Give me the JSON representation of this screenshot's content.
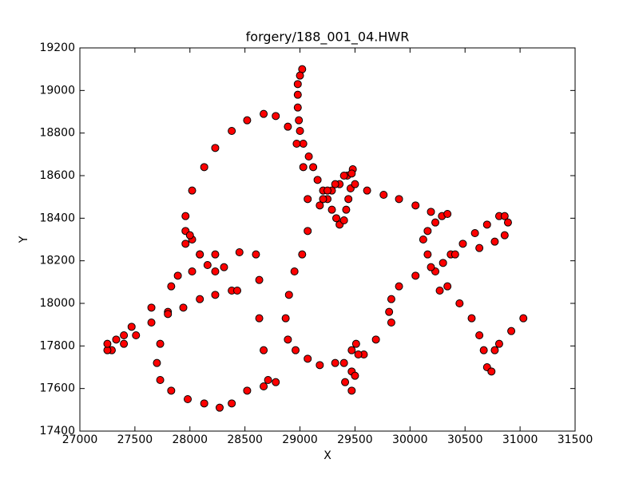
{
  "chart_data": {
    "type": "scatter",
    "title": "forgery/188_001_04.HWR",
    "xlabel": "X",
    "ylabel": "Y",
    "color": "#ff0000",
    "edgecolor": "#000000",
    "xlim": [
      27000,
      31500
    ],
    "xticks": [
      27000,
      27500,
      28000,
      28500,
      29000,
      29500,
      30000,
      30500,
      31000,
      31500
    ],
    "ylim": [
      17400,
      19200
    ],
    "yticks": [
      17400,
      17600,
      17800,
      18000,
      18200,
      18400,
      18600,
      18800,
      19000,
      19200
    ],
    "x": [
      29020,
      29000,
      28980,
      28980,
      28980,
      28990,
      29000,
      29030,
      29080,
      29120,
      29160,
      29210,
      29250,
      29290,
      29330,
      29360,
      29400,
      29420,
      29440,
      29460,
      29480,
      29430,
      29360,
      29290,
      29210,
      29180,
      29250,
      29320,
      29400,
      29470,
      29500,
      29610,
      29760,
      29900,
      30050,
      30190,
      30290,
      30340,
      30230,
      30160,
      30120,
      30160,
      30230,
      30270,
      30300,
      30370,
      30480,
      30590,
      30700,
      30810,
      30860,
      30890,
      30860,
      30770,
      30630,
      30410,
      30190,
      30050,
      29900,
      29830,
      29810,
      29830,
      29690,
      29580,
      29470,
      29410,
      29470,
      29500,
      29530,
      29510,
      29470,
      29400,
      29320,
      29180,
      29070,
      28960,
      28890,
      28870,
      28900,
      28950,
      29020,
      29070,
      29070,
      29030,
      28970,
      28890,
      28780,
      28670,
      28520,
      28380,
      28230,
      28130,
      28020,
      27960,
      27960,
      28020,
      28090,
      28230,
      28450,
      28600,
      28630,
      28630,
      28670,
      28710,
      28780,
      28670,
      28520,
      28380,
      28270,
      28130,
      27980,
      27830,
      27730,
      27700,
      27730,
      27800,
      27890,
      27960,
      28000,
      28090,
      28230,
      28380,
      28230,
      28090,
      27940,
      27800,
      27650,
      27510,
      27400,
      27290,
      27250,
      27250,
      27330,
      27400,
      27470,
      27650,
      27830,
      28020,
      28160,
      28310,
      28430,
      30340,
      30450,
      30560,
      30630,
      30670,
      30700,
      30740,
      30770,
      30810,
      30920,
      31030
    ],
    "values": [
      19100,
      19070,
      19030,
      18980,
      18920,
      18860,
      18810,
      18750,
      18690,
      18640,
      18580,
      18530,
      18490,
      18440,
      18400,
      18370,
      18390,
      18440,
      18490,
      18540,
      18630,
      18600,
      18560,
      18530,
      18490,
      18460,
      18530,
      18560,
      18600,
      18610,
      18560,
      18530,
      18510,
      18490,
      18460,
      18430,
      18410,
      18420,
      18380,
      18340,
      18300,
      18230,
      18150,
      18060,
      18190,
      18230,
      18280,
      18330,
      18370,
      18410,
      18410,
      18380,
      18320,
      18290,
      18260,
      18230,
      18170,
      18130,
      18080,
      18020,
      17960,
      17910,
      17830,
      17760,
      17680,
      17630,
      17590,
      17660,
      17760,
      17810,
      17780,
      17720,
      17720,
      17710,
      17740,
      17780,
      17830,
      17930,
      18040,
      18150,
      18230,
      18340,
      18490,
      18640,
      18750,
      18830,
      18880,
      18890,
      18860,
      18810,
      18730,
      18640,
      18530,
      18410,
      18340,
      18300,
      18230,
      18230,
      18240,
      18230,
      18110,
      17930,
      17780,
      17640,
      17630,
      17610,
      17590,
      17530,
      17510,
      17530,
      17550,
      17590,
      17640,
      17720,
      17810,
      17960,
      18130,
      18280,
      18320,
      18230,
      18150,
      18060,
      18040,
      18020,
      17980,
      17950,
      17910,
      17850,
      17810,
      17780,
      17780,
      17810,
      17830,
      17850,
      17890,
      17980,
      18080,
      18150,
      18180,
      18170,
      18060,
      18080,
      18000,
      17930,
      17850,
      17780,
      17700,
      17680,
      17780,
      17810,
      17870,
      17930
    ]
  }
}
